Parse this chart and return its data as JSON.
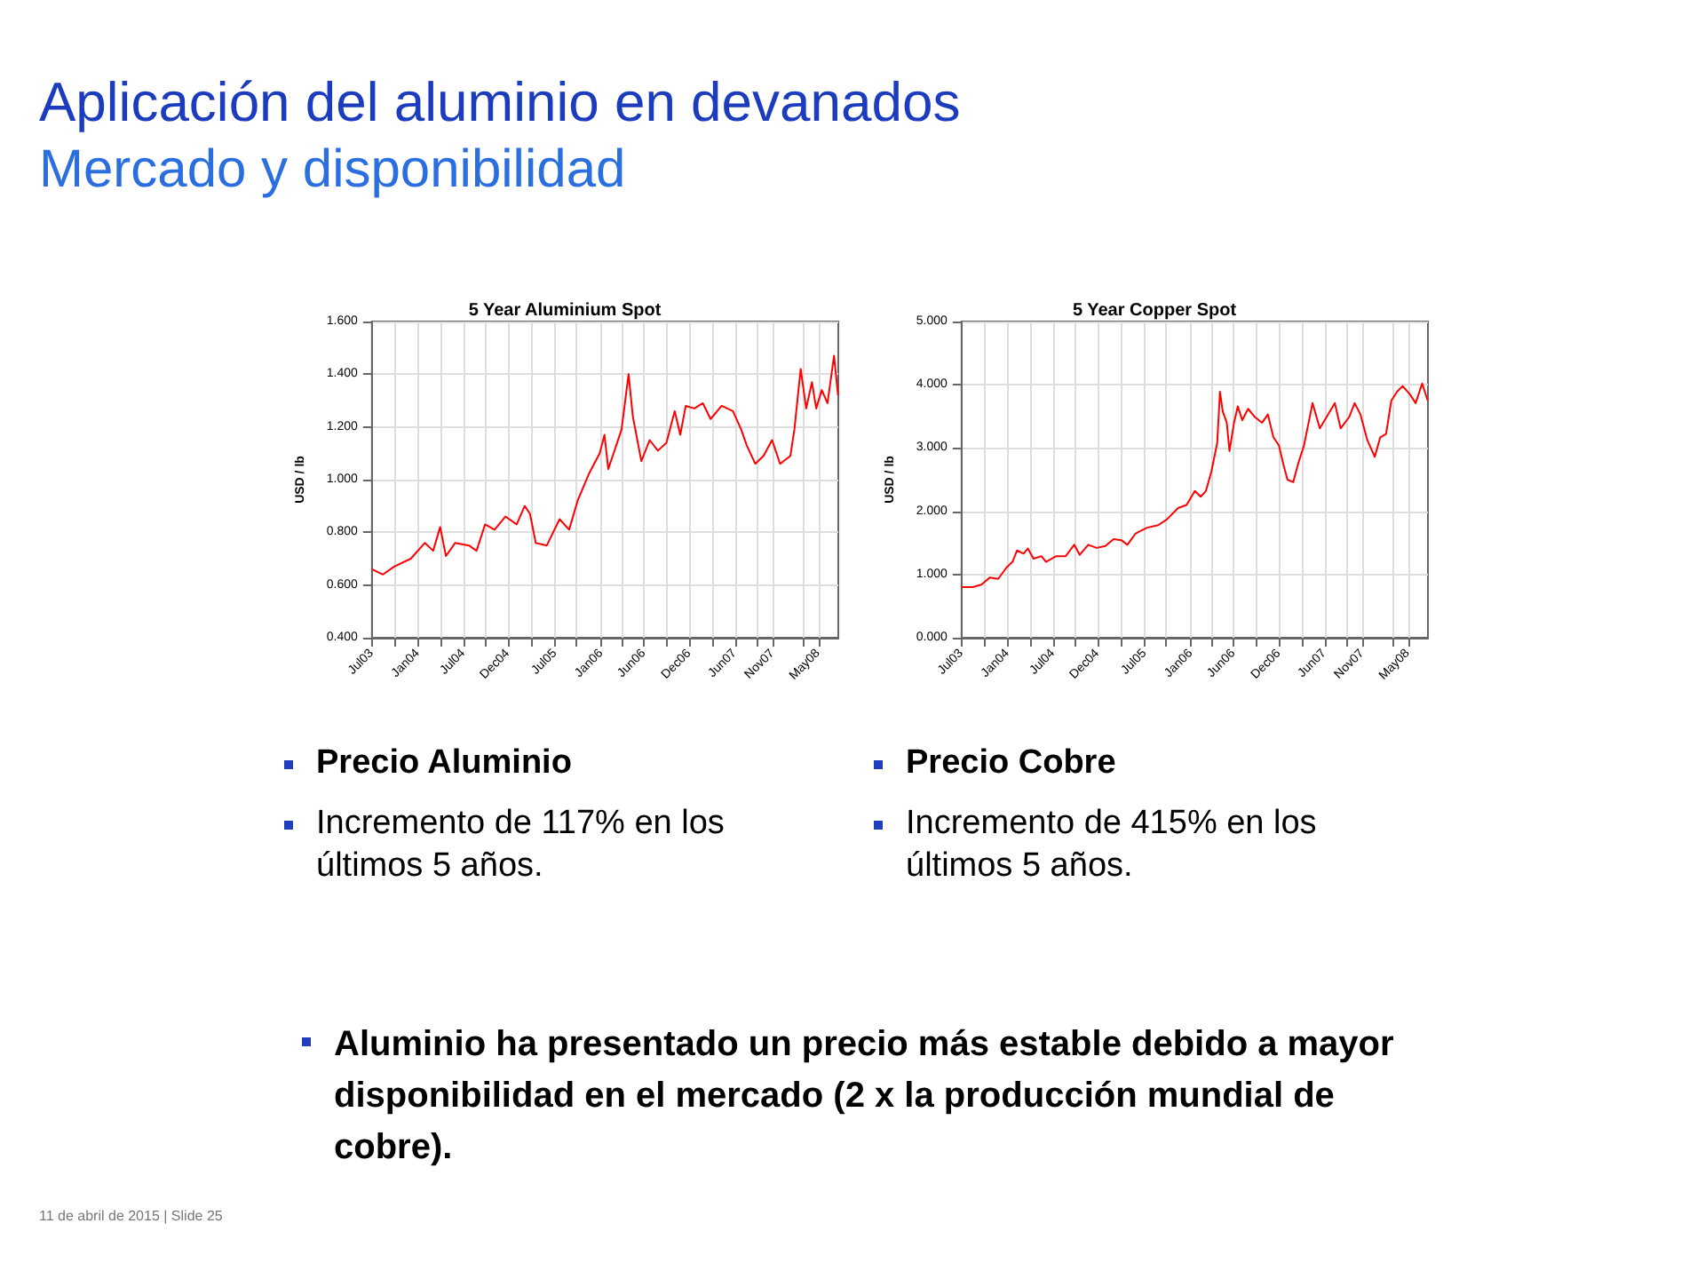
{
  "chart_data": [
    {
      "type": "line",
      "title": "5 Year Aluminium Spot",
      "ylabel": "USD / lb",
      "grid": true,
      "marker": "none",
      "line_style": "solid",
      "xlim": [
        "2003-07-01",
        "2008-08-02"
      ],
      "xticks": [
        {
          "value": "2003-07-01",
          "label": "Jul03"
        },
        {
          "value": "2003-09-30",
          "label": null
        },
        {
          "value": "2004-01-01",
          "label": "Jan04"
        },
        {
          "value": "2004-03-29",
          "label": null
        },
        {
          "value": "2004-07-01",
          "label": "Jul04"
        },
        {
          "value": "2004-09-26",
          "label": null
        },
        {
          "value": "2004-12-25",
          "label": "Dec04"
        },
        {
          "value": "2005-03-25",
          "label": null
        },
        {
          "value": "2005-07-01",
          "label": "Jul05"
        },
        {
          "value": "2005-09-23",
          "label": null
        },
        {
          "value": "2006-01-01",
          "label": "Jan06"
        },
        {
          "value": "2006-03-22",
          "label": null
        },
        {
          "value": "2006-06-20",
          "label": "Jun06"
        },
        {
          "value": "2006-09-19",
          "label": null
        },
        {
          "value": "2006-12-18",
          "label": "Dec06"
        },
        {
          "value": "2007-03-18",
          "label": null
        },
        {
          "value": "2007-06-17",
          "label": "Jun07"
        },
        {
          "value": "2007-09-16",
          "label": null
        },
        {
          "value": "2007-11-15",
          "label": "Nov07"
        },
        {
          "value": "2008-03-14",
          "label": null
        },
        {
          "value": "2008-05-15",
          "label": "May08"
        }
      ],
      "ylim": [
        0.4,
        1.6
      ],
      "yticks": [
        {
          "value": 0.4,
          "label": "0.400"
        },
        {
          "value": 0.6,
          "label": "0.600"
        },
        {
          "value": 0.8,
          "label": "0.800"
        },
        {
          "value": 1.0,
          "label": "1.000"
        },
        {
          "value": 1.2,
          "label": "1.200"
        },
        {
          "value": 1.4,
          "label": "1.400"
        },
        {
          "value": 1.6,
          "label": "1.600"
        }
      ],
      "annotations": [
        "Precio Aluminio",
        "Incremento de 117% en los últimos 5 años."
      ],
      "series": [
        {
          "color": "#ff0000",
          "x": [
            "2003-07-01",
            "2003-08-14",
            "2003-09-28",
            "2003-12-03",
            "2004-01-28",
            "2004-03-01",
            "2004-03-29",
            "2004-04-21",
            "2004-05-28",
            "2004-07-22",
            "2004-08-21",
            "2004-09-24",
            "2004-11-01",
            "2004-12-14",
            "2005-01-28",
            "2005-03-01",
            "2005-03-22",
            "2005-04-14",
            "2005-05-28",
            "2005-07-18",
            "2005-08-25",
            "2005-09-28",
            "2005-11-11",
            "2005-12-25",
            "2006-01-13",
            "2006-01-28",
            "2006-03-01",
            "2006-03-22",
            "2006-04-19",
            "2006-05-06",
            "2006-06-09",
            "2006-07-12",
            "2006-08-14",
            "2006-09-17",
            "2006-10-20",
            "2006-11-11",
            "2006-12-03",
            "2007-01-06",
            "2007-02-09",
            "2007-03-12",
            "2007-04-25",
            "2007-06-09",
            "2007-07-12",
            "2007-08-03",
            "2007-09-06",
            "2007-10-09",
            "2007-11-12",
            "2007-12-14",
            "2008-01-24",
            "2008-02-09",
            "2008-03-05",
            "2008-03-27",
            "2008-04-19",
            "2008-05-06",
            "2008-05-28",
            "2008-06-20",
            "2008-07-16",
            "2008-08-01"
          ],
          "values": [
            0.66,
            0.64,
            0.67,
            0.7,
            0.76,
            0.73,
            0.82,
            0.71,
            0.76,
            0.75,
            0.73,
            0.83,
            0.81,
            0.86,
            0.83,
            0.9,
            0.87,
            0.76,
            0.75,
            0.85,
            0.81,
            0.92,
            1.02,
            1.1,
            1.17,
            1.04,
            1.13,
            1.19,
            1.4,
            1.24,
            1.07,
            1.15,
            1.11,
            1.14,
            1.26,
            1.17,
            1.28,
            1.27,
            1.29,
            1.23,
            1.28,
            1.26,
            1.19,
            1.13,
            1.06,
            1.09,
            1.15,
            1.06,
            1.09,
            1.19,
            1.42,
            1.27,
            1.37,
            1.27,
            1.34,
            1.29,
            1.47,
            1.32
          ]
        }
      ]
    },
    {
      "type": "line",
      "title": "5 Year Copper Spot",
      "ylabel": "USD / lb",
      "grid": true,
      "marker": "none",
      "line_style": "solid",
      "xlim": [
        "2003-07-01",
        "2008-08-02"
      ],
      "xticks": [
        {
          "value": "2003-07-01",
          "label": "Jul03"
        },
        {
          "value": "2003-09-30",
          "label": null
        },
        {
          "value": "2004-01-01",
          "label": "Jan04"
        },
        {
          "value": "2004-03-29",
          "label": null
        },
        {
          "value": "2004-07-01",
          "label": "Jul04"
        },
        {
          "value": "2004-09-26",
          "label": null
        },
        {
          "value": "2004-12-25",
          "label": "Dec04"
        },
        {
          "value": "2005-03-25",
          "label": null
        },
        {
          "value": "2005-07-01",
          "label": "Jul05"
        },
        {
          "value": "2005-09-23",
          "label": null
        },
        {
          "value": "2006-01-01",
          "label": "Jan06"
        },
        {
          "value": "2006-03-22",
          "label": null
        },
        {
          "value": "2006-06-20",
          "label": "Jun06"
        },
        {
          "value": "2006-09-19",
          "label": null
        },
        {
          "value": "2006-12-18",
          "label": "Dec06"
        },
        {
          "value": "2007-03-18",
          "label": null
        },
        {
          "value": "2007-06-17",
          "label": "Jun07"
        },
        {
          "value": "2007-09-16",
          "label": null
        },
        {
          "value": "2007-11-15",
          "label": "Nov07"
        },
        {
          "value": "2008-03-14",
          "label": null
        },
        {
          "value": "2008-05-15",
          "label": "May08"
        }
      ],
      "ylim": [
        0,
        5
      ],
      "yticks": [
        {
          "value": 0,
          "label": "0.000"
        },
        {
          "value": 1,
          "label": "1.000"
        },
        {
          "value": 2,
          "label": "2.000"
        },
        {
          "value": 3,
          "label": "3.000"
        },
        {
          "value": 4,
          "label": "4.000"
        },
        {
          "value": 5,
          "label": "5.000"
        }
      ],
      "annotations": [
        "Precio Cobre",
        "Incremento de 415% en los últimos 5 años."
      ],
      "series": [
        {
          "color": "#ff0000",
          "x": [
            "2003-07-01",
            "2003-08-15",
            "2003-09-18",
            "2003-10-21",
            "2003-11-24",
            "2003-12-27",
            "2004-01-20",
            "2004-02-07",
            "2004-03-04",
            "2004-03-21",
            "2004-04-13",
            "2004-05-14",
            "2004-06-02",
            "2004-07-12",
            "2004-08-19",
            "2004-09-22",
            "2004-10-14",
            "2004-11-17",
            "2004-12-20",
            "2005-01-24",
            "2005-02-26",
            "2005-03-30",
            "2005-04-22",
            "2005-05-25",
            "2005-07-09",
            "2005-08-23",
            "2005-09-26",
            "2005-11-10",
            "2005-12-14",
            "2006-01-16",
            "2006-02-08",
            "2006-03-01",
            "2006-03-23",
            "2006-04-15",
            "2006-04-26",
            "2006-05-07",
            "2006-05-23",
            "2006-06-03",
            "2006-06-21",
            "2006-07-06",
            "2006-07-24",
            "2006-08-16",
            "2006-09-12",
            "2006-10-11",
            "2006-11-03",
            "2006-11-25",
            "2006-12-17",
            "2007-01-05",
            "2007-01-20",
            "2007-02-12",
            "2007-03-05",
            "2007-03-27",
            "2007-04-30",
            "2007-05-29",
            "2007-06-25",
            "2007-07-28",
            "2007-08-20",
            "2007-09-23",
            "2007-10-15",
            "2007-11-07",
            "2007-12-04",
            "2008-01-03",
            "2008-01-25",
            "2008-02-17",
            "2008-03-09",
            "2008-04-01",
            "2008-04-23",
            "2008-05-22",
            "2008-06-14",
            "2008-07-10",
            "2008-08-01"
          ],
          "values": [
            0.8,
            0.8,
            0.84,
            0.95,
            0.93,
            1.11,
            1.2,
            1.38,
            1.33,
            1.41,
            1.25,
            1.29,
            1.2,
            1.29,
            1.29,
            1.47,
            1.31,
            1.47,
            1.42,
            1.45,
            1.56,
            1.54,
            1.47,
            1.65,
            1.74,
            1.78,
            1.87,
            2.05,
            2.1,
            2.32,
            2.23,
            2.32,
            2.63,
            3.08,
            3.89,
            3.58,
            3.4,
            2.95,
            3.4,
            3.66,
            3.44,
            3.62,
            3.49,
            3.4,
            3.53,
            3.17,
            3.04,
            2.72,
            2.5,
            2.46,
            2.77,
            3.04,
            3.71,
            3.31,
            3.49,
            3.71,
            3.31,
            3.49,
            3.71,
            3.53,
            3.13,
            2.86,
            3.17,
            3.22,
            3.75,
            3.89,
            3.98,
            3.85,
            3.71,
            4.02,
            3.75
          ]
        }
      ]
    },
    {
      "type": "other",
      "title": "Aplicación del aluminio en devanados",
      "subtitle": "Mercado y disponibilidad",
      "annotations": [
        "Aluminio ha presentado un precio más estable debido a mayor disponibilidad en el mercado (2 x la producción mundial de cobre).",
        "11 de abril de 2015 | Slide 25"
      ]
    }
  ]
}
